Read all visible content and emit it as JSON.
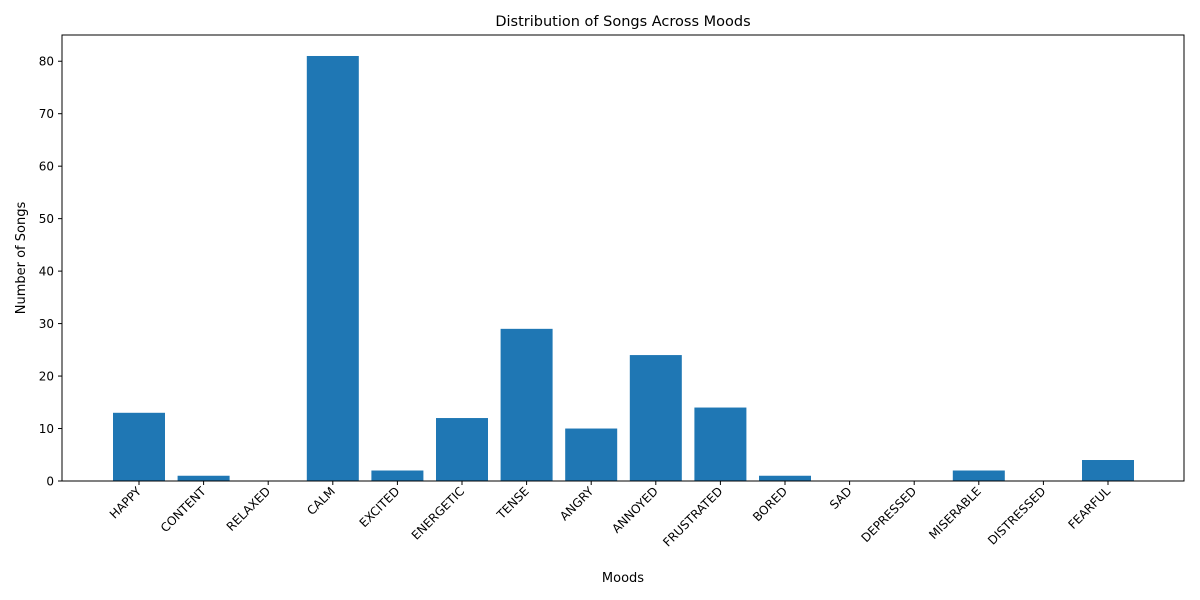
{
  "chart_data": {
    "type": "bar",
    "title": "Distribution of Songs Across Moods",
    "xlabel": "Moods",
    "ylabel": "Number of Songs",
    "categories": [
      "HAPPY",
      "CONTENT",
      "RELAXED",
      "CALM",
      "EXCITED",
      "ENERGETIC",
      "TENSE",
      "ANGRY",
      "ANNOYED",
      "FRUSTRATED",
      "BORED",
      "SAD",
      "DEPRESSED",
      "MISERABLE",
      "DISTRESSED",
      "FEARFUL"
    ],
    "values": [
      13,
      1,
      0,
      81,
      2,
      12,
      29,
      10,
      24,
      14,
      1,
      0,
      0,
      2,
      0,
      4
    ],
    "ylim": [
      0,
      85
    ],
    "yticks": [
      0,
      10,
      20,
      30,
      40,
      50,
      60,
      70,
      80
    ],
    "grid": false,
    "legend": "none",
    "bar_color": "#1f77b4"
  }
}
